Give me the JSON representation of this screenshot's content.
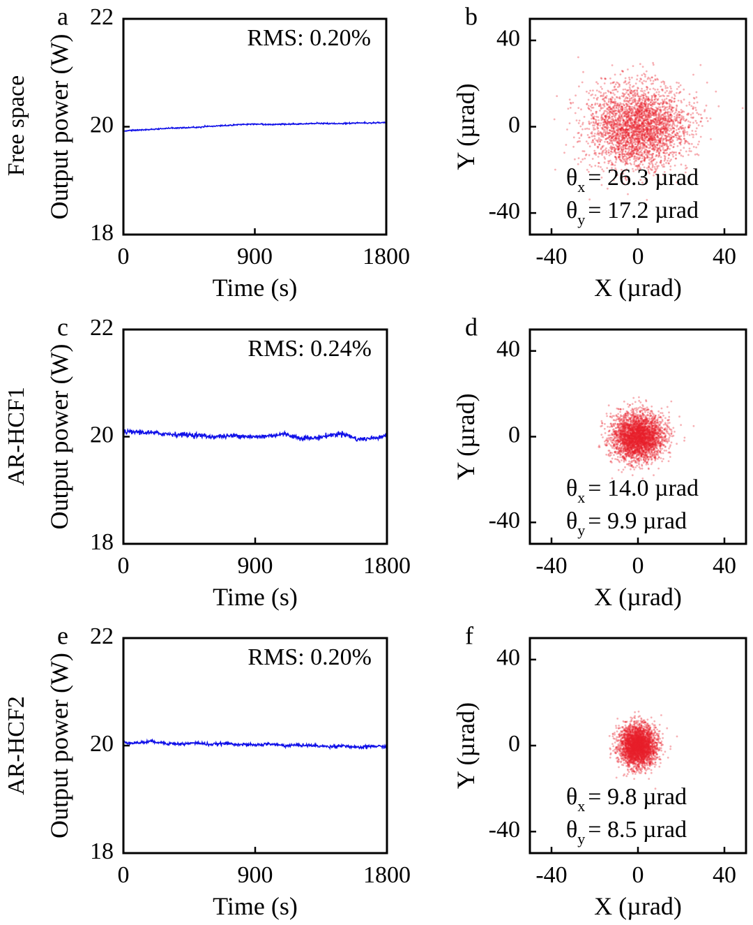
{
  "row_labels": [
    "Free space",
    "AR-HCF1",
    "AR-HCF2"
  ],
  "colors": {
    "power_line": "#1010e8",
    "scatter_points": "#e8202a",
    "axes": "#000000"
  },
  "chart_data": [
    {
      "type": "line",
      "panel": "a",
      "xlabel": "Time (s)",
      "ylabel": "Output power (W)",
      "xlim": [
        0,
        1800
      ],
      "ylim": [
        18,
        22
      ],
      "x_ticks": [
        "0",
        "900",
        "1800"
      ],
      "y_ticks": [
        "18",
        "20",
        "22"
      ],
      "annotation": "RMS: 0.20%",
      "series": [
        {
          "x": [
            0,
            100,
            200,
            300,
            400,
            500,
            600,
            700,
            800,
            900,
            1000,
            1100,
            1200,
            1300,
            1400,
            1500,
            1600,
            1700,
            1800
          ],
          "values": [
            19.92,
            19.94,
            19.95,
            19.97,
            19.98,
            19.99,
            20.01,
            20.02,
            20.04,
            20.05,
            20.04,
            20.05,
            20.05,
            20.06,
            20.06,
            20.06,
            20.07,
            20.07,
            20.08
          ]
        }
      ]
    },
    {
      "type": "scatter",
      "panel": "b",
      "xlabel": "X (µrad)",
      "ylabel": "Y (µrad)",
      "xlim": [
        -50,
        50
      ],
      "ylim": [
        -50,
        50
      ],
      "x_ticks": [
        "-40",
        "0",
        "40"
      ],
      "y_ticks": [
        "-40",
        "0",
        "40"
      ],
      "center": [
        0,
        0
      ],
      "theta_x_label": "θ",
      "theta_x_sub": "x",
      "theta_x_text": "= 26.3 µrad",
      "theta_y_label": "θ",
      "theta_y_sub": "y",
      "theta_y_text": "= 17.2 µrad",
      "spread_urad": [
        26.3,
        17.2
      ]
    },
    {
      "type": "line",
      "panel": "c",
      "xlabel": "Time (s)",
      "ylabel": "Output power (W)",
      "xlim": [
        0,
        1800
      ],
      "ylim": [
        18,
        22
      ],
      "x_ticks": [
        "0",
        "900",
        "1800"
      ],
      "y_ticks": [
        "18",
        "20",
        "22"
      ],
      "annotation": "RMS: 0.24%",
      "series": [
        {
          "x": [
            0,
            100,
            200,
            300,
            400,
            500,
            600,
            700,
            800,
            900,
            1000,
            1100,
            1200,
            1300,
            1400,
            1500,
            1600,
            1700,
            1800
          ],
          "values": [
            20.08,
            20.09,
            20.07,
            20.05,
            20.04,
            20.03,
            20.0,
            20.01,
            20.02,
            19.99,
            20.02,
            20.05,
            19.98,
            19.97,
            20.02,
            20.06,
            19.95,
            19.97,
            20.03
          ]
        }
      ]
    },
    {
      "type": "scatter",
      "panel": "d",
      "xlabel": "X (µrad)",
      "ylabel": "Y (µrad)",
      "xlim": [
        -50,
        50
      ],
      "ylim": [
        -50,
        50
      ],
      "x_ticks": [
        "-40",
        "0",
        "40"
      ],
      "y_ticks": [
        "-40",
        "0",
        "40"
      ],
      "center": [
        0,
        0
      ],
      "theta_x_label": "θ",
      "theta_x_sub": "x",
      "theta_x_text": "= 14.0 µrad",
      "theta_y_label": "θ",
      "theta_y_sub": "y",
      "theta_y_text": "= 9.9 µrad",
      "spread_urad": [
        14.0,
        9.9
      ]
    },
    {
      "type": "line",
      "panel": "e",
      "xlabel": "Time (s)",
      "ylabel": "Output power (W)",
      "xlim": [
        0,
        1800
      ],
      "ylim": [
        18,
        22
      ],
      "x_ticks": [
        "0",
        "900",
        "1800"
      ],
      "y_ticks": [
        "18",
        "20",
        "22"
      ],
      "annotation": "RMS: 0.20%",
      "series": [
        {
          "x": [
            0,
            100,
            200,
            300,
            400,
            500,
            600,
            700,
            800,
            900,
            1000,
            1100,
            1200,
            1300,
            1400,
            1500,
            1600,
            1700,
            1800
          ],
          "values": [
            20.06,
            20.05,
            20.08,
            20.04,
            20.03,
            20.05,
            20.02,
            20.04,
            20.02,
            20.01,
            20.03,
            20.0,
            20.01,
            20.0,
            19.98,
            20.0,
            19.96,
            19.99,
            19.98
          ]
        }
      ]
    },
    {
      "type": "scatter",
      "panel": "f",
      "xlabel": "X (µrad)",
      "ylabel": "Y (µrad)",
      "xlim": [
        -50,
        50
      ],
      "ylim": [
        -50,
        50
      ],
      "x_ticks": [
        "-40",
        "0",
        "40"
      ],
      "y_ticks": [
        "-40",
        "0",
        "40"
      ],
      "center": [
        0,
        0
      ],
      "theta_x_label": "θ",
      "theta_x_sub": "x",
      "theta_x_text": "= 9.8 µrad",
      "theta_y_label": "θ",
      "theta_y_sub": "y",
      "theta_y_text": "= 8.5 µrad",
      "spread_urad": [
        9.8,
        8.5
      ]
    }
  ]
}
